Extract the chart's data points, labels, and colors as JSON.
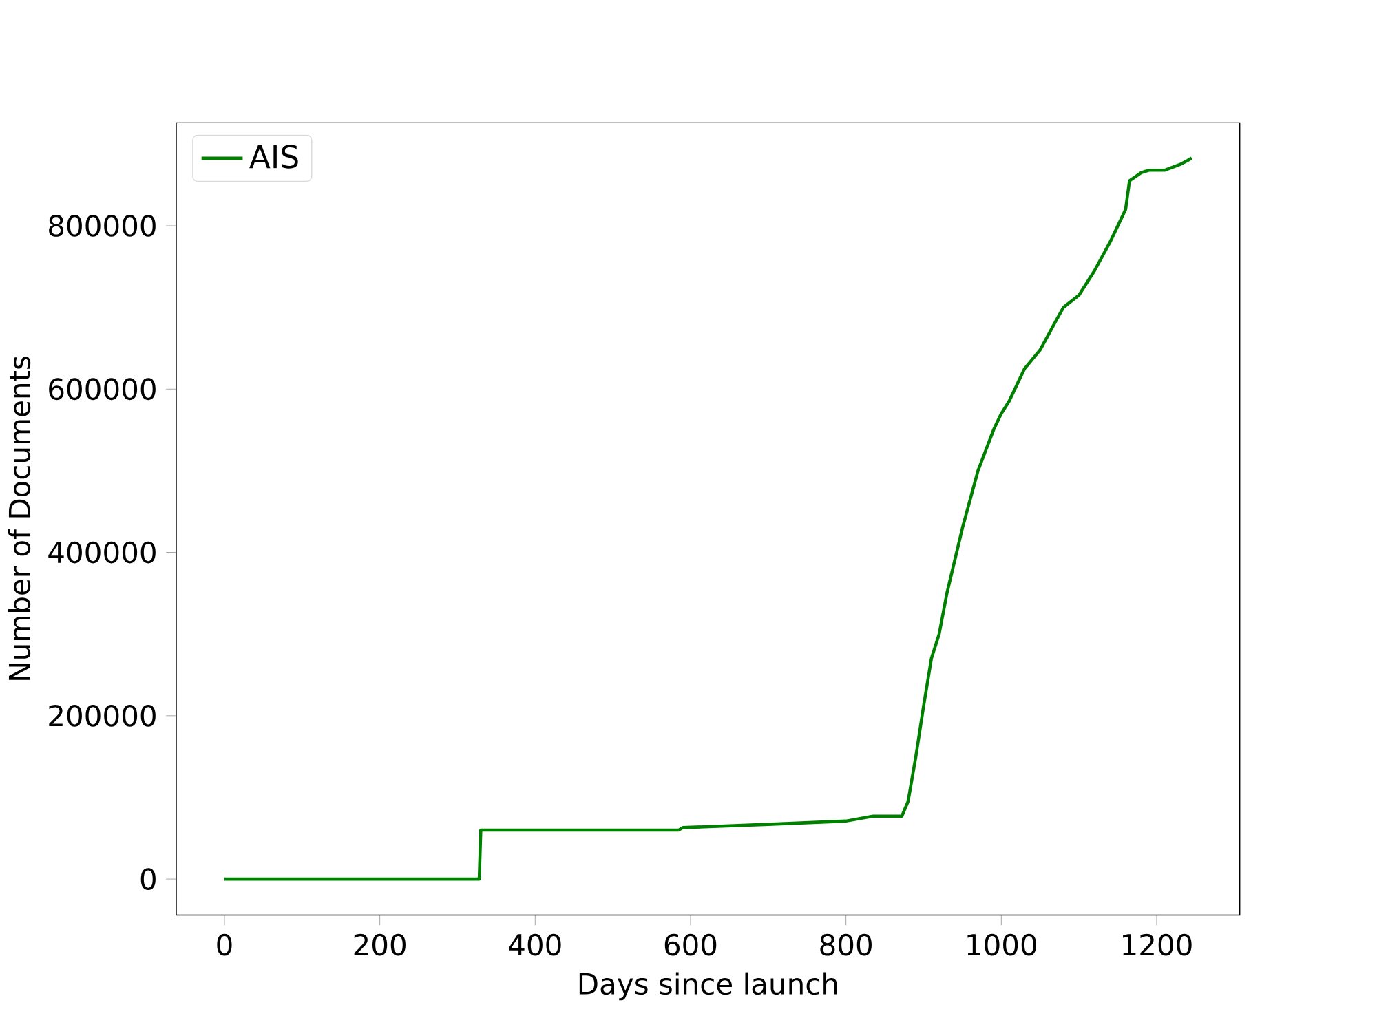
{
  "chart_data": {
    "type": "line",
    "xlabel": "Days since launch",
    "ylabel": "Number of Documents",
    "xlim": [
      -62,
      1307
    ],
    "ylim": [
      -44100,
      926100
    ],
    "xticks": [
      0,
      200,
      400,
      600,
      800,
      1000,
      1200
    ],
    "yticks": [
      0,
      200000,
      400000,
      600000,
      800000
    ],
    "legend": "top left",
    "grid": false,
    "x": [
      0,
      328,
      330,
      585,
      590,
      700,
      800,
      835,
      872,
      880,
      890,
      900,
      910,
      920,
      930,
      940,
      950,
      960,
      970,
      980,
      990,
      1000,
      1010,
      1020,
      1030,
      1050,
      1070,
      1080,
      1100,
      1120,
      1140,
      1150,
      1160,
      1165,
      1180,
      1190,
      1210,
      1230,
      1240,
      1245
    ],
    "series": [
      {
        "name": "AIS",
        "color": "#008000",
        "values": [
          0,
          0,
          60000,
          60000,
          63000,
          67000,
          71000,
          77000,
          77000,
          95000,
          150000,
          212000,
          270000,
          300000,
          350000,
          390000,
          430000,
          465000,
          500000,
          525000,
          550000,
          570000,
          585000,
          605000,
          625000,
          648000,
          683000,
          700000,
          715000,
          745000,
          780000,
          800000,
          820000,
          855000,
          865000,
          868000,
          868000,
          875000,
          880000,
          883000
        ]
      }
    ]
  }
}
